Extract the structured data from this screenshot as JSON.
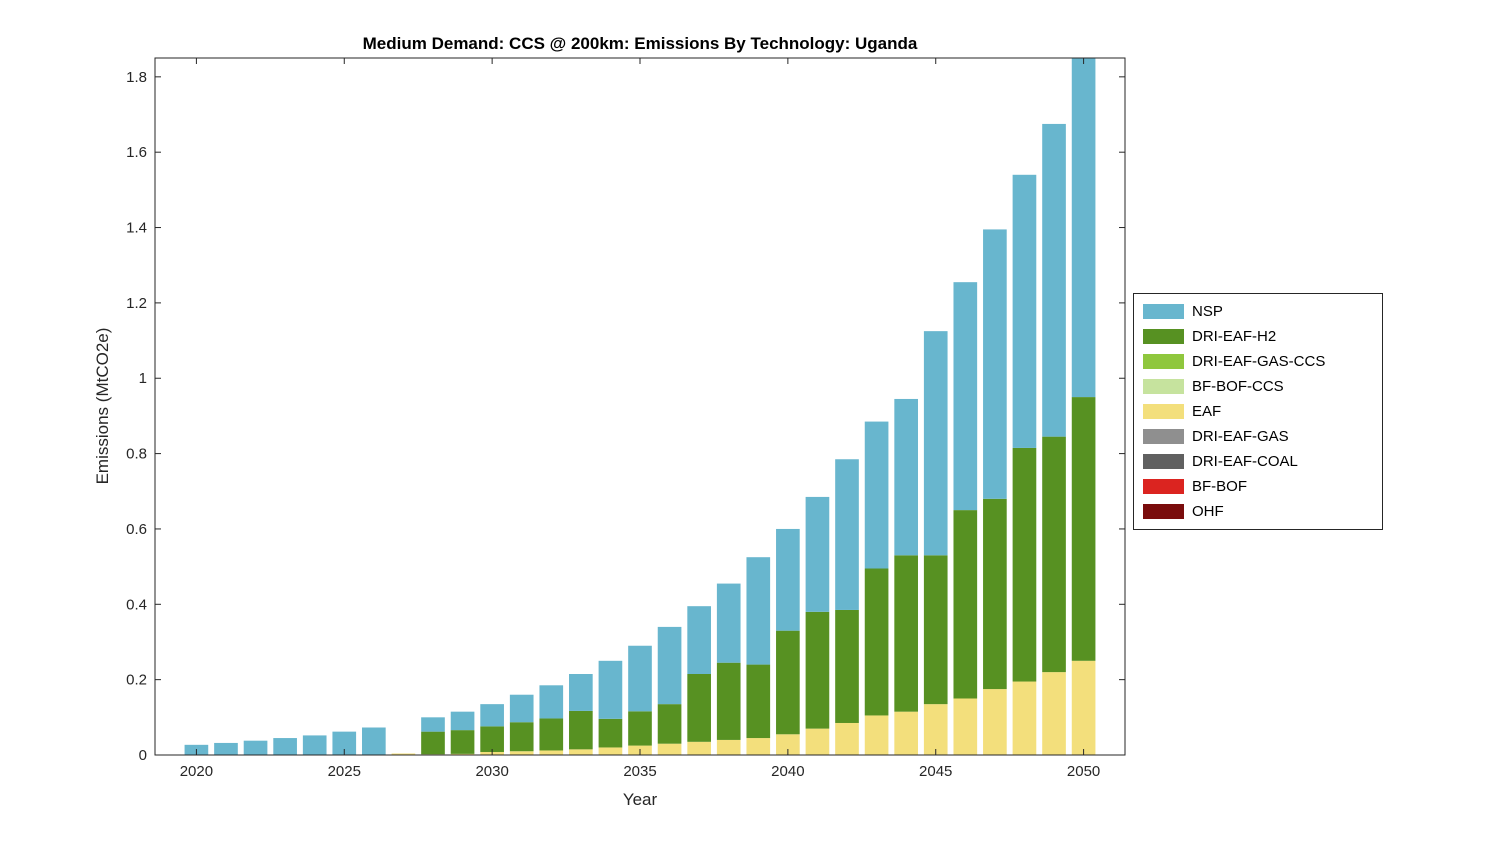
{
  "figure": {
    "title": "Medium Demand: CCS @ 200km: Emissions By Technology: Uganda",
    "xlabel": "Year",
    "ylabel": "Emissions (MtCO2e)"
  },
  "legend": {
    "position": "right-outside",
    "items": [
      {
        "label": "NSP",
        "color": "#68B6CE"
      },
      {
        "label": "DRI-EAF-H2",
        "color": "#579122"
      },
      {
        "label": "DRI-EAF-GAS-CCS",
        "color": "#8FC73D"
      },
      {
        "label": "BF-BOF-CCS",
        "color": "#C6E39E"
      },
      {
        "label": "EAF",
        "color": "#F3DF7C"
      },
      {
        "label": "DRI-EAF-GAS",
        "color": "#8F8F8F"
      },
      {
        "label": "DRI-EAF-COAL",
        "color": "#606060"
      },
      {
        "label": "BF-BOF",
        "color": "#DB2420"
      },
      {
        "label": "OHF",
        "color": "#7A0C0C"
      }
    ]
  },
  "chart_data": {
    "type": "bar",
    "stacked": true,
    "title": "Medium Demand: CCS @ 200km: Emissions By Technology: Uganda",
    "xlabel": "Year",
    "ylabel": "Emissions (MtCO2e)",
    "grid": false,
    "legend_position": "right-outside",
    "xlim": [
      2018.6,
      2051.4
    ],
    "ylim": [
      0,
      1.85
    ],
    "bar_width_years": 0.8,
    "xticks": [
      2020,
      2025,
      2030,
      2035,
      2040,
      2045,
      2050
    ],
    "xtick_labels": [
      "2020",
      "2025",
      "2030",
      "2035",
      "2040",
      "2045",
      "2050"
    ],
    "yticks": [
      0,
      0.2,
      0.4,
      0.6,
      0.8,
      1,
      1.2,
      1.4,
      1.6,
      1.8
    ],
    "ytick_labels": [
      "0",
      "0.2",
      "0.4",
      "0.6",
      "0.8",
      "1",
      "1.2",
      "1.4",
      "1.6",
      "1.8"
    ],
    "x": [
      2020,
      2021,
      2022,
      2023,
      2024,
      2025,
      2026,
      2027,
      2028,
      2029,
      2030,
      2031,
      2032,
      2033,
      2034,
      2035,
      2036,
      2037,
      2038,
      2039,
      2040,
      2041,
      2042,
      2043,
      2044,
      2045,
      2046,
      2047,
      2048,
      2049,
      2050
    ],
    "stack_order_bottom_to_top": [
      "OHF",
      "BF-BOF",
      "DRI-EAF-COAL",
      "DRI-EAF-GAS",
      "EAF",
      "BF-BOF-CCS",
      "DRI-EAF-GAS-CCS",
      "DRI-EAF-H2",
      "NSP"
    ],
    "series": [
      {
        "name": "NSP",
        "color": "#68B6CE",
        "values": [
          0.027,
          0.032,
          0.038,
          0.045,
          0.052,
          0.062,
          0.073,
          0,
          0.038,
          0.049,
          0.059,
          0.073,
          0.088,
          0.098,
          0.154,
          0.174,
          0.205,
          0.18,
          0.21,
          0.285,
          0.27,
          0.305,
          0.4,
          0.39,
          0.415,
          0.595,
          0.605,
          0.715,
          0.725,
          0.83,
          0.91
        ]
      },
      {
        "name": "DRI-EAF-H2",
        "color": "#579122",
        "values": [
          0,
          0,
          0,
          0,
          0,
          0,
          0,
          0,
          0.06,
          0.063,
          0.068,
          0.077,
          0.085,
          0.102,
          0.076,
          0.091,
          0.105,
          0.18,
          0.205,
          0.195,
          0.275,
          0.31,
          0.3,
          0.39,
          0.415,
          0.395,
          0.5,
          0.505,
          0.62,
          0.625,
          0.7
        ]
      },
      {
        "name": "DRI-EAF-GAS-CCS",
        "color": "#8FC73D",
        "values": [
          0,
          0,
          0,
          0,
          0,
          0,
          0,
          0,
          0,
          0,
          0,
          0,
          0,
          0,
          0,
          0,
          0,
          0,
          0,
          0,
          0,
          0,
          0,
          0,
          0,
          0,
          0,
          0,
          0,
          0,
          0
        ]
      },
      {
        "name": "BF-BOF-CCS",
        "color": "#C6E39E",
        "values": [
          0,
          0,
          0,
          0,
          0,
          0,
          0,
          0,
          0,
          0,
          0,
          0,
          0,
          0,
          0,
          0,
          0,
          0,
          0,
          0,
          0,
          0,
          0,
          0,
          0,
          0,
          0,
          0,
          0,
          0,
          0
        ]
      },
      {
        "name": "EAF",
        "color": "#F3DF7C",
        "values": [
          0,
          0,
          0,
          0,
          0,
          0,
          0,
          0.004,
          0.002,
          0.003,
          0.008,
          0.01,
          0.012,
          0.015,
          0.02,
          0.025,
          0.03,
          0.035,
          0.04,
          0.045,
          0.055,
          0.07,
          0.085,
          0.105,
          0.115,
          0.135,
          0.15,
          0.175,
          0.195,
          0.22,
          0.25
        ]
      },
      {
        "name": "DRI-EAF-GAS",
        "color": "#8F8F8F",
        "values": [
          0,
          0,
          0,
          0,
          0,
          0,
          0,
          0,
          0,
          0,
          0,
          0,
          0,
          0,
          0,
          0,
          0,
          0,
          0,
          0,
          0,
          0,
          0,
          0,
          0,
          0,
          0,
          0,
          0,
          0,
          0
        ]
      },
      {
        "name": "DRI-EAF-COAL",
        "color": "#606060",
        "values": [
          0,
          0,
          0,
          0,
          0,
          0,
          0,
          0,
          0,
          0,
          0,
          0,
          0,
          0,
          0,
          0,
          0,
          0,
          0,
          0,
          0,
          0,
          0,
          0,
          0,
          0,
          0,
          0,
          0,
          0,
          0
        ]
      },
      {
        "name": "BF-BOF",
        "color": "#DB2420",
        "values": [
          0,
          0,
          0,
          0,
          0,
          0,
          0,
          0,
          0,
          0,
          0,
          0,
          0,
          0,
          0,
          0,
          0,
          0,
          0,
          0,
          0,
          0,
          0,
          0,
          0,
          0,
          0,
          0,
          0,
          0,
          0
        ]
      },
      {
        "name": "OHF",
        "color": "#7A0C0C",
        "values": [
          0,
          0,
          0,
          0,
          0,
          0,
          0,
          0,
          0,
          0,
          0,
          0,
          0,
          0,
          0,
          0,
          0,
          0,
          0,
          0,
          0,
          0,
          0,
          0,
          0,
          0,
          0,
          0,
          0,
          0,
          0
        ]
      }
    ]
  }
}
